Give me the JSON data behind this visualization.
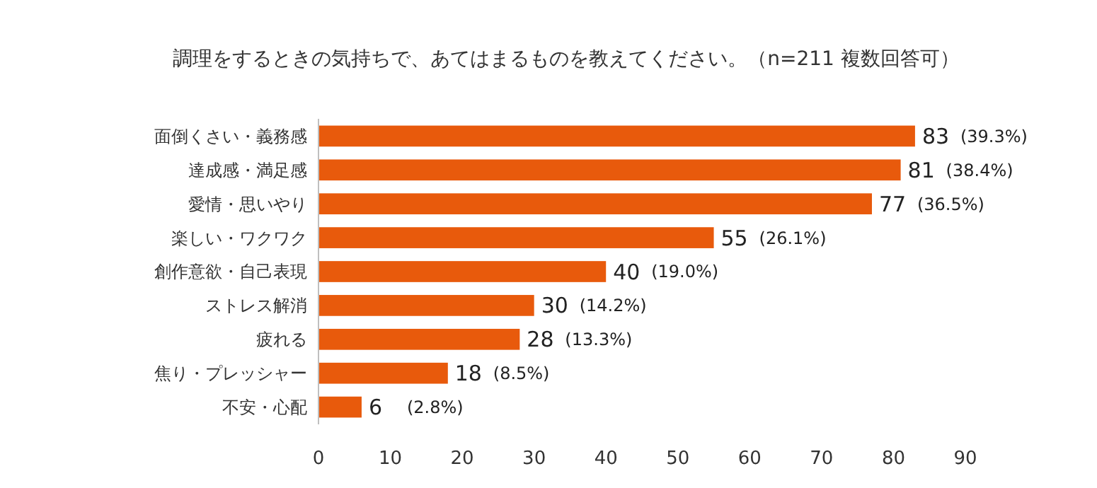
{
  "chart_data": {
    "type": "bar",
    "orientation": "horizontal",
    "title": "調理をするときの気持ちで、あてはまるものを教えてください。（n=211 複数回答可）",
    "categories": [
      "面倒くさい・義務感",
      "達成感・満足感",
      "愛情・思いやり",
      "楽しい・ワクワク",
      "創作意欲・自己表現",
      "ストレス解消",
      "疲れる",
      "焦り・プレッシャー",
      "不安・心配"
    ],
    "values": [
      83,
      81,
      77,
      55,
      40,
      30,
      28,
      18,
      6
    ],
    "color": "#e85a0c",
    "xlim": [
      0,
      90
    ],
    "xticks": [
      0,
      10,
      20,
      30,
      40,
      50,
      60,
      70,
      80,
      90
    ],
    "grid": false,
    "data_labels": true,
    "annotations": [
      {
        "text": "(39.3%)",
        "x": 83,
        "y": "面倒くさい・義務感"
      },
      {
        "text": "(38.4%)",
        "x": 81,
        "y": "達成感・満足感"
      },
      {
        "text": "(36.5%)",
        "x": 77,
        "y": "愛情・思いやり"
      },
      {
        "text": "(26.1%)",
        "x": 55,
        "y": "楽しい・ワクワク"
      },
      {
        "text": "(19.0%)",
        "x": 40,
        "y": "創作意欲・自己表現"
      },
      {
        "text": "(14.2%)",
        "x": 30,
        "y": "ストレス解消"
      },
      {
        "text": "(13.3%)",
        "x": 28,
        "y": "疲れる"
      },
      {
        "text": "(8.5%)",
        "x": 18,
        "y": "焦り・プレッシャー"
      },
      {
        "text": "(2.8%)",
        "x": 6,
        "y": "不安・心配"
      }
    ]
  }
}
